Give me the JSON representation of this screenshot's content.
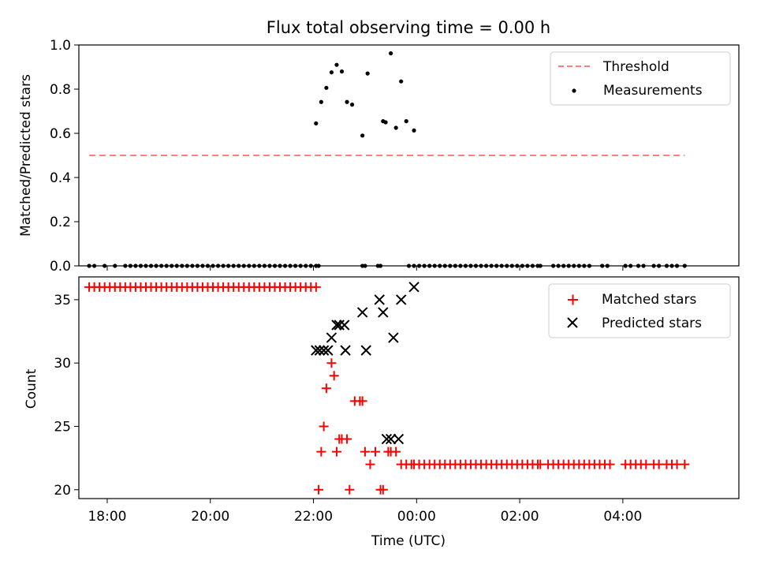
{
  "figure_title": "Flux total observing time = 0.00 h",
  "chart_data": [
    {
      "type": "scatter",
      "panel": "top",
      "title": "Flux total observing time = 0.00 h",
      "xlabel": "",
      "ylabel": "Matched/Predicted stars",
      "x_unit": "hours since 00:00 UTC",
      "xlim": [
        -6.55,
        6.25
      ],
      "ylim": [
        0.0,
        1.0
      ],
      "yticks": [
        0.0,
        0.2,
        0.4,
        0.6,
        0.8,
        1.0
      ],
      "ytick_labels": [
        "0.0",
        "0.2",
        "0.4",
        "0.6",
        "0.8",
        "1.0"
      ],
      "grid": false,
      "legend": {
        "placement": "top-right",
        "entries": [
          "Threshold",
          "Measurements"
        ]
      },
      "threshold": {
        "name": "Threshold",
        "value": 0.5,
        "x_start": -6.35,
        "x_end": 5.2,
        "color": "#ff7f7f",
        "style": "dashed"
      },
      "series": [
        {
          "name": "Measurements",
          "color": "#000000",
          "marker": "dot",
          "x": [
            -6.35,
            -6.25,
            -6.05,
            -5.85,
            -5.65,
            -5.55,
            -5.45,
            -5.35,
            -5.25,
            -5.15,
            -5.05,
            -4.95,
            -4.85,
            -4.75,
            -4.65,
            -4.55,
            -4.45,
            -4.35,
            -4.25,
            -4.15,
            -4.05,
            -3.95,
            -3.85,
            -3.75,
            -3.65,
            -3.55,
            -3.45,
            -3.35,
            -3.25,
            -3.15,
            -3.05,
            -2.95,
            -2.85,
            -2.75,
            -2.65,
            -2.55,
            -2.45,
            -2.35,
            -2.25,
            -2.15,
            -2.05,
            -1.95,
            -1.9,
            -1.05,
            -1.0,
            -0.75,
            -0.7,
            -0.15,
            -0.05,
            0.05,
            0.15,
            0.25,
            0.35,
            0.45,
            0.55,
            0.65,
            0.75,
            0.85,
            0.95,
            1.05,
            1.15,
            1.25,
            1.35,
            1.45,
            1.55,
            1.65,
            1.75,
            1.85,
            1.95,
            2.05,
            2.15,
            2.25,
            2.35,
            2.4,
            2.65,
            2.75,
            2.85,
            2.95,
            3.05,
            3.15,
            3.25,
            3.35,
            3.6,
            3.7,
            4.05,
            4.15,
            4.3,
            4.4,
            4.6,
            4.7,
            4.85,
            4.95,
            5.05,
            5.2,
            -1.95,
            -1.85,
            -1.75,
            -1.65,
            -1.55,
            -1.45,
            -1.35,
            -1.25,
            -1.05,
            -0.95,
            -0.65,
            -0.6,
            -0.5,
            -0.4,
            -0.3,
            -0.2,
            -0.05
          ],
          "y": [
            0,
            0,
            0,
            0,
            0,
            0,
            0,
            0,
            0,
            0,
            0,
            0,
            0,
            0,
            0,
            0,
            0,
            0,
            0,
            0,
            0,
            0,
            0,
            0,
            0,
            0,
            0,
            0,
            0,
            0,
            0,
            0,
            0,
            0,
            0,
            0,
            0,
            0,
            0,
            0,
            0,
            0,
            0,
            0,
            0,
            0,
            0,
            0,
            0,
            0,
            0,
            0,
            0,
            0,
            0,
            0,
            0,
            0,
            0,
            0,
            0,
            0,
            0,
            0,
            0,
            0,
            0,
            0,
            0,
            0,
            0,
            0,
            0,
            0,
            0,
            0,
            0,
            0,
            0,
            0,
            0,
            0,
            0,
            0,
            0,
            0,
            0,
            0,
            0,
            0,
            0,
            0,
            0,
            0,
            0.645,
            0.742,
            0.806,
            0.876,
            0.91,
            0.88,
            0.742,
            0.73,
            0.59,
            0.871,
            0.655,
            0.65,
            0.962,
            0.625,
            0.835,
            0.655,
            0.613
          ]
        }
      ]
    },
    {
      "type": "scatter",
      "panel": "bottom",
      "xlabel": "Time (UTC)",
      "ylabel": "Count",
      "x_unit": "hours since 00:00 UTC",
      "xlim": [
        -6.55,
        6.25
      ],
      "ylim": [
        19.3,
        36.8
      ],
      "xticks": [
        -6,
        -4,
        -2,
        0,
        2,
        4
      ],
      "xtick_labels": [
        "18:00",
        "20:00",
        "22:00",
        "00:00",
        "02:00",
        "04:00"
      ],
      "yticks": [
        20,
        25,
        30,
        35
      ],
      "ytick_labels": [
        "20",
        "25",
        "30",
        "35"
      ],
      "grid": false,
      "legend": {
        "placement": "top-right",
        "entries": [
          "Matched stars",
          "Predicted stars"
        ]
      },
      "series": [
        {
          "name": "Matched stars",
          "color": "#ff0000",
          "marker": "plus",
          "x": [
            -6.35,
            -6.25,
            -6.15,
            -6.05,
            -5.95,
            -5.85,
            -5.75,
            -5.65,
            -5.55,
            -5.45,
            -5.35,
            -5.25,
            -5.15,
            -5.05,
            -4.95,
            -4.85,
            -4.75,
            -4.65,
            -4.55,
            -4.45,
            -4.35,
            -4.25,
            -4.15,
            -4.05,
            -3.95,
            -3.85,
            -3.75,
            -3.65,
            -3.55,
            -3.45,
            -3.35,
            -3.25,
            -3.15,
            -3.05,
            -2.95,
            -2.85,
            -2.75,
            -2.65,
            -2.55,
            -2.45,
            -2.35,
            -2.25,
            -2.15,
            -2.05,
            -1.95,
            -1.9,
            -1.85,
            -1.8,
            -1.75,
            -1.65,
            -1.6,
            -1.55,
            -1.5,
            -1.45,
            -1.35,
            -1.3,
            -1.2,
            -1.1,
            -1.05,
            -1.0,
            -0.9,
            -0.8,
            -0.7,
            -0.65,
            -0.55,
            -0.5,
            -0.4,
            -0.3,
            -0.2,
            -0.1,
            -0.05,
            0.05,
            0.15,
            0.25,
            0.35,
            0.45,
            0.55,
            0.65,
            0.75,
            0.85,
            0.95,
            1.05,
            1.15,
            1.25,
            1.35,
            1.45,
            1.55,
            1.65,
            1.75,
            1.85,
            1.95,
            2.05,
            2.15,
            2.25,
            2.35,
            2.4,
            2.55,
            2.65,
            2.75,
            2.85,
            2.95,
            3.05,
            3.15,
            3.25,
            3.35,
            3.45,
            3.55,
            3.65,
            3.75,
            4.05,
            4.15,
            4.25,
            4.35,
            4.45,
            4.6,
            4.7,
            4.85,
            4.95,
            5.05,
            5.2
          ],
          "y": [
            36,
            36,
            36,
            36,
            36,
            36,
            36,
            36,
            36,
            36,
            36,
            36,
            36,
            36,
            36,
            36,
            36,
            36,
            36,
            36,
            36,
            36,
            36,
            36,
            36,
            36,
            36,
            36,
            36,
            36,
            36,
            36,
            36,
            36,
            36,
            36,
            36,
            36,
            36,
            36,
            36,
            36,
            36,
            36,
            36,
            20,
            23,
            25,
            28,
            30,
            29,
            23,
            24,
            24,
            24,
            20,
            27,
            27,
            27,
            23,
            22,
            23,
            20,
            20,
            23,
            23,
            23,
            22,
            22,
            22,
            22,
            22,
            22,
            22,
            22,
            22,
            22,
            22,
            22,
            22,
            22,
            22,
            22,
            22,
            22,
            22,
            22,
            22,
            22,
            22,
            22,
            22,
            22,
            22,
            22,
            22,
            22,
            22,
            22,
            22,
            22,
            22,
            22,
            22,
            22,
            22,
            22,
            22,
            22,
            22,
            22,
            22,
            22,
            22,
            22,
            22,
            22,
            22,
            22,
            22
          ]
        },
        {
          "name": "Predicted stars",
          "color": "#000000",
          "marker": "x",
          "x": [
            -1.95,
            -1.88,
            -1.8,
            -1.72,
            -1.65,
            -1.55,
            -1.5,
            -1.4,
            -1.38,
            -1.05,
            -0.98,
            -0.72,
            -0.65,
            -0.58,
            -0.5,
            -0.45,
            -0.35,
            -0.3,
            -0.05
          ],
          "y": [
            31,
            31,
            31,
            31,
            32,
            33,
            33,
            33,
            31,
            34,
            31,
            35,
            34,
            24,
            24,
            32,
            24,
            35,
            36
          ]
        }
      ]
    }
  ]
}
